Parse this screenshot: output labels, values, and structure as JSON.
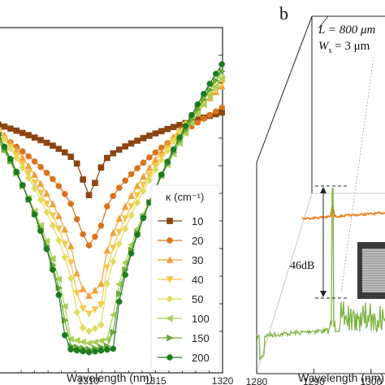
{
  "panel_b_label": "b",
  "panel_b_annotations": {
    "length": "L = 800 μm",
    "width": "W",
    "width_sub": "s",
    "width_value": " = 3 μm",
    "height_label": "46dB"
  },
  "colors": {
    "s10": "#8b4513",
    "s20": "#d9731b",
    "s30": "#f0a13a",
    "s40": "#f6c84a",
    "s50": "#e2dc5e",
    "s100": "#a9cf5b",
    "s150": "#6aa83c",
    "s200": "#1f7a1f",
    "spectrum_green": "#7cb342",
    "spectrum_orange": "#f07f1e"
  },
  "chart_data": [
    {
      "type": "line",
      "xlabel": "Wavelength (nm)",
      "ylabel": "",
      "xlim": [
        1303.3,
        1320
      ],
      "ylim": [
        0,
        1
      ],
      "x_ticks": [
        "1310",
        "1315",
        "1320"
      ],
      "legend": {
        "title": "κ (cm⁻¹)",
        "placement": "bottom-right",
        "entries": [
          "10",
          "20",
          "30",
          "40",
          "50",
          "100",
          "150",
          "200"
        ]
      },
      "series": [
        {
          "name": "10",
          "marker": "square",
          "color": "#8b4513",
          "x_min_val": 0.6,
          "flat_halfwidth": 0.9,
          "scale": 0.76,
          "pow": 0.62
        },
        {
          "name": "20",
          "marker": "circle",
          "color": "#d9731b",
          "x_min_val": 0.43,
          "flat_halfwidth": 0.9,
          "scale": 0.78,
          "pow": 0.6
        },
        {
          "name": "30",
          "marker": "triangle-up",
          "color": "#f0a13a",
          "x_min_val": 0.26,
          "flat_halfwidth": 0.9,
          "scale": 0.85,
          "pow": 0.58
        },
        {
          "name": "40",
          "marker": "triangle-down",
          "color": "#f6c84a",
          "x_min_val": 0.2,
          "flat_halfwidth": 0.9,
          "scale": 0.86,
          "pow": 0.58
        },
        {
          "name": "50",
          "marker": "diamond",
          "color": "#e2dc5e",
          "x_min_val": 0.14,
          "flat_halfwidth": 0.9,
          "scale": 0.88,
          "pow": 0.58
        },
        {
          "name": "100",
          "marker": "triangle-left",
          "color": "#a9cf5b",
          "x_min_val": 0.1,
          "flat_halfwidth": 1.6,
          "scale": 0.92,
          "pow": 0.6
        },
        {
          "name": "150",
          "marker": "triangle-right",
          "color": "#6aa83c",
          "x_min_val": 0.08,
          "flat_halfwidth": 1.7,
          "scale": 0.95,
          "pow": 0.6
        },
        {
          "name": "200",
          "marker": "circle",
          "color": "#1f7a1f",
          "x_min_val": 0.07,
          "flat_halfwidth": 1.8,
          "scale": 0.98,
          "pow": 0.6
        }
      ]
    },
    {
      "type": "line",
      "xlabel": "Wavelength (nm)",
      "xlim": [
        1280,
        1305
      ],
      "x_ticks": [
        "1280",
        "1290",
        "1300"
      ]
    }
  ]
}
